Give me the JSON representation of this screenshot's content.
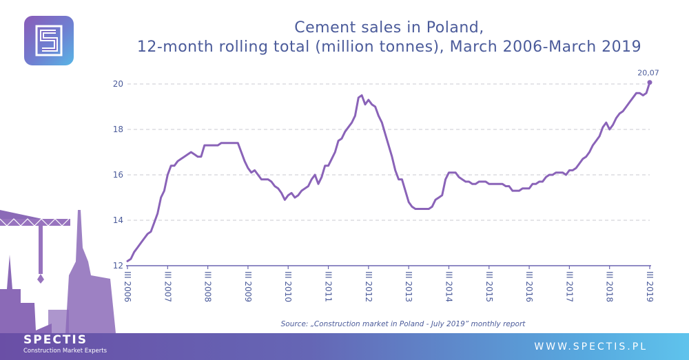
{
  "brand": {
    "name": "SPECTIS",
    "tagline": "Construction Market Experts",
    "website": "WWW.SPECTIS.PL",
    "colors": {
      "line": "#8a63b8",
      "text": "#4b5b9a",
      "grid": "#c8c8d0"
    }
  },
  "title_line1": "Cement sales in Poland,",
  "title_line2": "12-month rolling total (million tonnes), March 2006-March 2019",
  "source": "Source: „Construction market in Poland - July 2019” monthly report",
  "chart_data": {
    "type": "line",
    "title": "Cement sales in Poland, 12-month rolling total (million tonnes), March 2006-March 2019",
    "ylim": [
      12,
      20
    ],
    "yticks": [
      12,
      14,
      16,
      18,
      20
    ],
    "grid": true,
    "x_start": "III 2006",
    "x_end": "III 2019",
    "xticks": [
      "III 2006",
      "III 2007",
      "III 2008",
      "III 2009",
      "III 2010",
      "III 2011",
      "III 2012",
      "III 2013",
      "III 2014",
      "III 2015",
      "III 2016",
      "III 2017",
      "III 2018",
      "III 2019"
    ],
    "end_label": "20,07",
    "series": [
      {
        "values": [
          12.2,
          12.3,
          12.6,
          12.8,
          13.0,
          13.2,
          13.4,
          13.5,
          13.9,
          14.3,
          15.0,
          15.3,
          16.0,
          16.4,
          16.4,
          16.6,
          16.7,
          16.8,
          16.9,
          17.0,
          16.9,
          16.8,
          16.8,
          17.3,
          17.3,
          17.3,
          17.3,
          17.3,
          17.4,
          17.4,
          17.4,
          17.4,
          17.4,
          17.4,
          17.0,
          16.6,
          16.3,
          16.1,
          16.2,
          16.0,
          15.8,
          15.8,
          15.8,
          15.7,
          15.5,
          15.4,
          15.2,
          14.9,
          15.1,
          15.2,
          15.0,
          15.1,
          15.3,
          15.4,
          15.5,
          15.8,
          16.0,
          15.6,
          15.9,
          16.4,
          16.4,
          16.7,
          17.0,
          17.5,
          17.6,
          17.9,
          18.1,
          18.3,
          18.6,
          19.4,
          19.5,
          19.1,
          19.3,
          19.1,
          19.0,
          18.6,
          18.3,
          17.8,
          17.3,
          16.8,
          16.2,
          15.8,
          15.8,
          15.3,
          14.8,
          14.6,
          14.5,
          14.5,
          14.5,
          14.5,
          14.5,
          14.6,
          14.9,
          15.0,
          15.1,
          15.8,
          16.1,
          16.1,
          16.1,
          15.9,
          15.8,
          15.7,
          15.7,
          15.6,
          15.6,
          15.7,
          15.7,
          15.7,
          15.6,
          15.6,
          15.6,
          15.6,
          15.6,
          15.5,
          15.5,
          15.3,
          15.3,
          15.3,
          15.4,
          15.4,
          15.4,
          15.6,
          15.6,
          15.7,
          15.7,
          15.9,
          16.0,
          16.0,
          16.1,
          16.1,
          16.1,
          16.0,
          16.2,
          16.2,
          16.3,
          16.5,
          16.7,
          16.8,
          17.0,
          17.3,
          17.5,
          17.7,
          18.1,
          18.3,
          18.0,
          18.2,
          18.5,
          18.7,
          18.8,
          19.0,
          19.2,
          19.4,
          19.6,
          19.6,
          19.5,
          19.6,
          20.07
        ]
      }
    ]
  }
}
